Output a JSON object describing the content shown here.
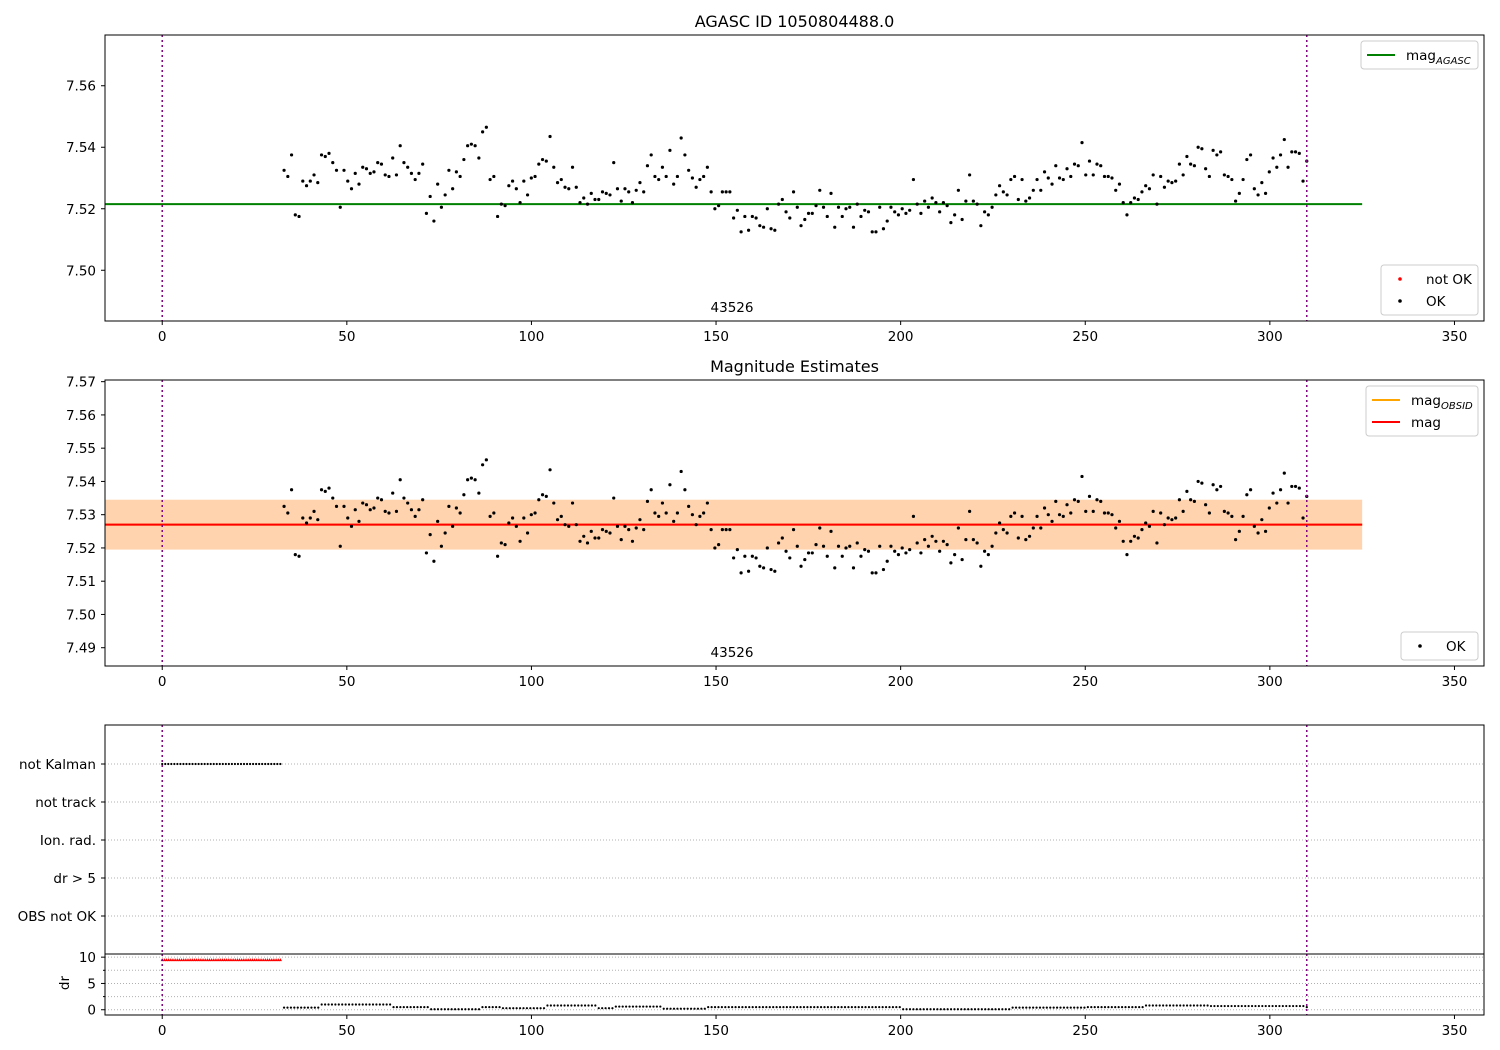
{
  "chart_data": [
    {
      "type": "scatter",
      "title": "AGASC ID 1050804488.0",
      "xlim": [
        -15.5,
        358
      ],
      "ylim": [
        7.4835,
        7.5765
      ],
      "xticks": [
        0,
        50,
        100,
        150,
        200,
        250,
        300,
        350
      ],
      "yticks": [
        7.5,
        7.52,
        7.54,
        7.56
      ],
      "ytick_labels": [
        "7.50",
        "7.52",
        "7.54",
        "7.56"
      ],
      "vlines": [
        0,
        310
      ],
      "hlines": [
        {
          "name": "mag_AGASC",
          "y": 7.5215,
          "x": [
            -15.5,
            325
          ],
          "color": "#008000"
        }
      ],
      "annotation": "43526",
      "legends": [
        {
          "loc": "upper right",
          "entries": [
            {
              "label": "mag",
              "sub": "AGASC",
              "kind": "line",
              "color": "#008000"
            }
          ]
        },
        {
          "loc": "lower right",
          "entries": [
            {
              "label": "not OK",
              "kind": "dot",
              "color": "#ff0000"
            },
            {
              "label": "OK",
              "kind": "dot",
              "color": "#000000"
            }
          ]
        }
      ],
      "series": [
        {
          "name": "OK",
          "color": "#000000",
          "x_start": 33,
          "x_end": 310,
          "n": 300,
          "y": [
            7.5325,
            7.5305,
            7.5375,
            7.518,
            7.5175,
            7.529,
            7.5275,
            7.529,
            7.531,
            7.5285,
            7.5375,
            7.537,
            7.538,
            7.535,
            7.5325,
            7.5205,
            7.5325,
            7.529,
            7.5265,
            7.5315,
            7.528,
            7.5335,
            7.533,
            7.5315,
            7.532,
            7.535,
            7.5345,
            7.531,
            7.5305,
            7.5365,
            7.531,
            7.5405,
            7.535,
            7.5335,
            7.5315,
            7.5295,
            7.5315,
            7.5345,
            7.5185,
            7.524,
            7.516,
            7.528,
            7.5205,
            7.5245,
            7.5325,
            7.5265,
            7.532,
            7.5305,
            7.536,
            7.5405,
            7.541,
            7.5405,
            7.5365,
            7.545,
            7.5465,
            7.5295,
            7.5305,
            7.5175,
            7.5215,
            7.521,
            7.5275,
            7.529,
            7.5265,
            7.522,
            7.529,
            7.5245,
            7.53,
            7.5305,
            7.5345,
            7.536,
            7.5355,
            7.5435,
            7.5335,
            7.5285,
            7.5295,
            7.527,
            7.5265,
            7.5335,
            7.527,
            7.522,
            7.5235,
            7.5215,
            7.525,
            7.523,
            7.523,
            7.5255,
            7.525,
            7.5245,
            7.535,
            7.5265,
            7.5225,
            7.5265,
            7.5255,
            7.522,
            7.526,
            7.5285,
            7.5255,
            7.534,
            7.5375,
            7.5305,
            7.5295,
            7.5335,
            7.5305,
            7.539,
            7.528,
            7.5305,
            7.543,
            7.5375,
            7.5325,
            7.53,
            7.527,
            7.5295,
            7.5305,
            7.5335,
            7.5255,
            7.52,
            7.521,
            7.5255,
            7.5255,
            7.5255,
            7.517,
            7.5195,
            7.5125,
            7.5175,
            7.513,
            7.5175,
            7.517,
            7.5145,
            7.514,
            7.52,
            7.5135,
            7.513,
            7.5215,
            7.523,
            7.519,
            7.517,
            7.5255,
            7.5205,
            7.5145,
            7.5165,
            7.5185,
            7.5185,
            7.521,
            7.526,
            7.5205,
            7.5175,
            7.525,
            7.514,
            7.5205,
            7.5175,
            7.52,
            7.5205,
            7.514,
            7.5215,
            7.5175,
            7.5195,
            7.519,
            7.5125,
            7.5125,
            7.5205,
            7.5135,
            7.516,
            7.5205,
            7.519,
            7.518,
            7.52,
            7.5185,
            7.5195,
            7.5295,
            7.5215,
            7.5185,
            7.5225,
            7.5205,
            7.5235,
            7.522,
            7.519,
            7.522,
            7.521,
            7.5155,
            7.518,
            7.526,
            7.5165,
            7.5225,
            7.531,
            7.5225,
            7.5215,
            7.5145,
            7.519,
            7.518,
            7.5205,
            7.5245,
            7.5275,
            7.5255,
            7.5245,
            7.5295,
            7.5305,
            7.523,
            7.5295,
            7.5225,
            7.5235,
            7.526,
            7.5295,
            7.526,
            7.532,
            7.53,
            7.528,
            7.534,
            7.53,
            7.5295,
            7.533,
            7.5305,
            7.5345,
            7.534,
            7.5415,
            7.531,
            7.5355,
            7.531,
            7.5345,
            7.534,
            7.5305,
            7.5305,
            7.53,
            7.526,
            7.528,
            7.522,
            7.518,
            7.522,
            7.5235,
            7.523,
            7.5255,
            7.5275,
            7.5265,
            7.531,
            7.5215,
            7.5305,
            7.527,
            7.529,
            7.5285,
            7.529,
            7.5345,
            7.531,
            7.537,
            7.5345,
            7.534,
            7.54,
            7.5395,
            7.533,
            7.5305,
            7.539,
            7.5375,
            7.5385,
            7.531,
            7.5305,
            7.5295,
            7.5225,
            7.525,
            7.5295,
            7.536,
            7.5375,
            7.5265,
            7.5245,
            7.5285,
            7.525,
            7.532,
            7.5365,
            7.5335,
            7.5375,
            7.5425,
            7.5335,
            7.5385,
            7.5385,
            7.538,
            7.529,
            7.5355
          ]
        }
      ]
    },
    {
      "type": "scatter",
      "title": "Magnitude Estimates",
      "xlim": [
        -15.5,
        358
      ],
      "ylim": [
        7.4845,
        7.5705
      ],
      "xticks": [
        0,
        50,
        100,
        150,
        200,
        250,
        300,
        350
      ],
      "yticks": [
        7.49,
        7.5,
        7.51,
        7.52,
        7.53,
        7.54,
        7.55,
        7.56,
        7.57
      ],
      "ytick_labels": [
        "7.49",
        "7.50",
        "7.51",
        "7.52",
        "7.53",
        "7.54",
        "7.55",
        "7.56",
        "7.57"
      ],
      "vlines": [
        0,
        310
      ],
      "bands": [
        {
          "x": [
            -15.5,
            325
          ],
          "y": [
            7.5195,
            7.5345
          ],
          "color": "#ffc0cb",
          "opacity": 0.45
        },
        {
          "x": [
            -15.5,
            325
          ],
          "y": [
            7.5195,
            7.5345
          ],
          "color": "#ffa500",
          "opacity": 0.25
        }
      ],
      "hlines": [
        {
          "name": "mag_OBSID",
          "y": 7.527,
          "x": [
            -15.5,
            325
          ],
          "color": "#ffa500"
        },
        {
          "name": "mag",
          "y": 7.527,
          "x": [
            -15.5,
            325
          ],
          "color": "#ff0000"
        }
      ],
      "annotation": "43526",
      "legends": [
        {
          "loc": "upper right",
          "entries": [
            {
              "label": "mag",
              "sub": "OBSID",
              "kind": "line",
              "color": "#ffa500"
            },
            {
              "label": "mag",
              "kind": "line",
              "color": "#ff0000"
            }
          ]
        },
        {
          "loc": "lower right",
          "entries": [
            {
              "label": "OK",
              "kind": "dot",
              "color": "#000000"
            }
          ]
        }
      ],
      "series_ref": 0
    },
    {
      "type": "category-scatter",
      "categories": [
        "not Kalman",
        "not track",
        "Ion. rad.",
        "dr > 5",
        "OBS not OK"
      ],
      "xlim": [
        -15.5,
        358
      ],
      "vlines": [
        0,
        310
      ],
      "flags": [
        {
          "category": "not Kalman",
          "x_start": 0,
          "x_end": 32,
          "n": 40,
          "color": "#000000"
        }
      ]
    },
    {
      "type": "scatter",
      "ylabel": "dr",
      "xlim": [
        -15.5,
        358
      ],
      "ylim": [
        -1,
        10.6
      ],
      "xticks": [
        0,
        50,
        100,
        150,
        200,
        250,
        300,
        350
      ],
      "yticks": [
        0,
        5,
        10
      ],
      "ytick_labels": [
        "0",
        "5",
        "10"
      ],
      "minor_grid": [
        2.5,
        7.5
      ],
      "vlines": [
        0,
        310
      ],
      "series": [
        {
          "name": "dr > 5",
          "color": "#ff0000",
          "marker": "triangle",
          "x_start": 0,
          "x_end": 32,
          "n": 56,
          "value": 9.5
        },
        {
          "name": "dr",
          "color": "#000000",
          "x_start": 33,
          "x_end": 310,
          "n": 300,
          "segments": [
            [
              33,
              43,
              0.4
            ],
            [
              43,
              62,
              1.0
            ],
            [
              62,
              72,
              0.5
            ],
            [
              72,
              86,
              0.1
            ],
            [
              86,
              92,
              0.5
            ],
            [
              92,
              104,
              0.3
            ],
            [
              104,
              118,
              0.8
            ],
            [
              118,
              122,
              0.3
            ],
            [
              122,
              135,
              0.6
            ],
            [
              135,
              147,
              0.2
            ],
            [
              147,
              200,
              0.5
            ],
            [
              200,
              230,
              0.1
            ],
            [
              230,
              250,
              0.4
            ],
            [
              250,
              266,
              0.5
            ],
            [
              266,
              284,
              0.8
            ],
            [
              284,
              310,
              0.7
            ]
          ]
        }
      ]
    }
  ]
}
